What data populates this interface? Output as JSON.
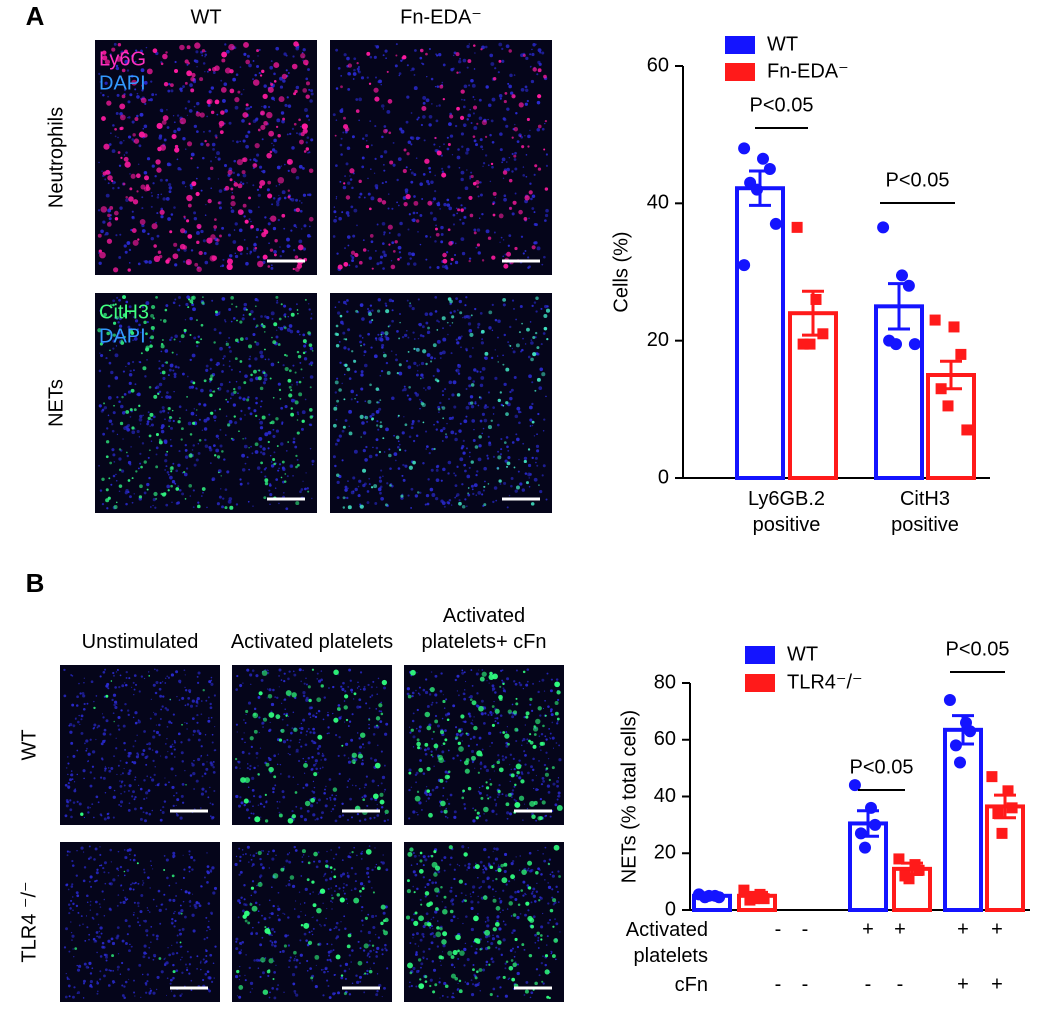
{
  "panel_labels": [
    "A",
    "B"
  ],
  "panel_a": {
    "columns": [
      "WT",
      "Fn-EDA⁻"
    ],
    "rows": [
      "Neutrophils",
      "NETs"
    ],
    "stains": [
      [
        "Ly6G",
        "DAPI"
      ],
      [
        "CitH3",
        "DAPI"
      ]
    ]
  },
  "panel_b": {
    "columns": [
      "Unstimulated",
      "Activated platelets",
      "Activated platelets+ cFn"
    ],
    "rows": [
      "WT",
      "TLR4 ⁻/⁻"
    ]
  },
  "chart_data": [
    {
      "type": "bar",
      "ylabel": "Cells (%)",
      "categories": [
        "Ly6GB.2 positive",
        "CitH3 positive"
      ],
      "ylim": [
        0,
        60
      ],
      "yticks": [
        0,
        20,
        40,
        60
      ],
      "legend": "upper left",
      "series": [
        {
          "name": "WT",
          "color": "#1414ff",
          "marker": "circle",
          "values": [
            42.2,
            25
          ],
          "errors": [
            2.5,
            3.3
          ],
          "points": [
            [
              48,
              46.5,
              45,
              43,
              42,
              37,
              31
            ],
            [
              36.5,
              29.5,
              28,
              20,
              19.5,
              19.5
            ]
          ]
        },
        {
          "name": "Fn-EDA⁻",
          "color": "#ff1a1a",
          "marker": "square",
          "values": [
            24,
            15
          ],
          "errors": [
            3.2,
            2
          ],
          "points": [
            [
              36.5,
              26,
              21,
              19.5,
              19.5
            ],
            [
              23,
              22,
              18,
              13,
              10.5,
              7
            ]
          ]
        }
      ],
      "annotations": [
        "P<0.05",
        "P<0.05"
      ]
    },
    {
      "type": "bar",
      "ylabel": "NETs (% total cells)",
      "categories": [
        null,
        null,
        null
      ],
      "ylim": [
        0,
        80
      ],
      "yticks": [
        0,
        20,
        40,
        60,
        80
      ],
      "legend": "upper left",
      "condition_rows": [
        {
          "label": "Activated platelets",
          "signs": [
            "-",
            "-",
            "+",
            "+",
            "+",
            "+"
          ]
        },
        {
          "label": "cFn",
          "signs": [
            "-",
            "-",
            "-",
            "-",
            "+",
            "+"
          ]
        }
      ],
      "series": [
        {
          "name": "WT",
          "color": "#1414ff",
          "marker": "circle",
          "values": [
            5,
            30.5,
            63.5
          ],
          "errors": [
            0.7,
            4.5,
            5
          ],
          "points": [
            [
              5.5,
              5,
              4.5,
              4.5,
              5
            ],
            [
              44,
              36,
              30,
              27,
              22
            ],
            [
              74,
              66,
              63,
              58,
              52
            ]
          ]
        },
        {
          "name": "TLR4⁻/⁻",
          "color": "#ff1a1a",
          "marker": "square",
          "values": [
            5,
            14.5,
            36.5
          ],
          "errors": [
            1.2,
            2,
            4
          ],
          "points": [
            [
              7,
              5.5,
              4,
              3.5,
              4
            ],
            [
              18,
              16,
              14,
              12,
              11
            ],
            [
              47,
              42,
              36,
              34,
              27
            ]
          ]
        }
      ],
      "annotations": [
        "P<0.05",
        "P<0.05"
      ]
    }
  ]
}
